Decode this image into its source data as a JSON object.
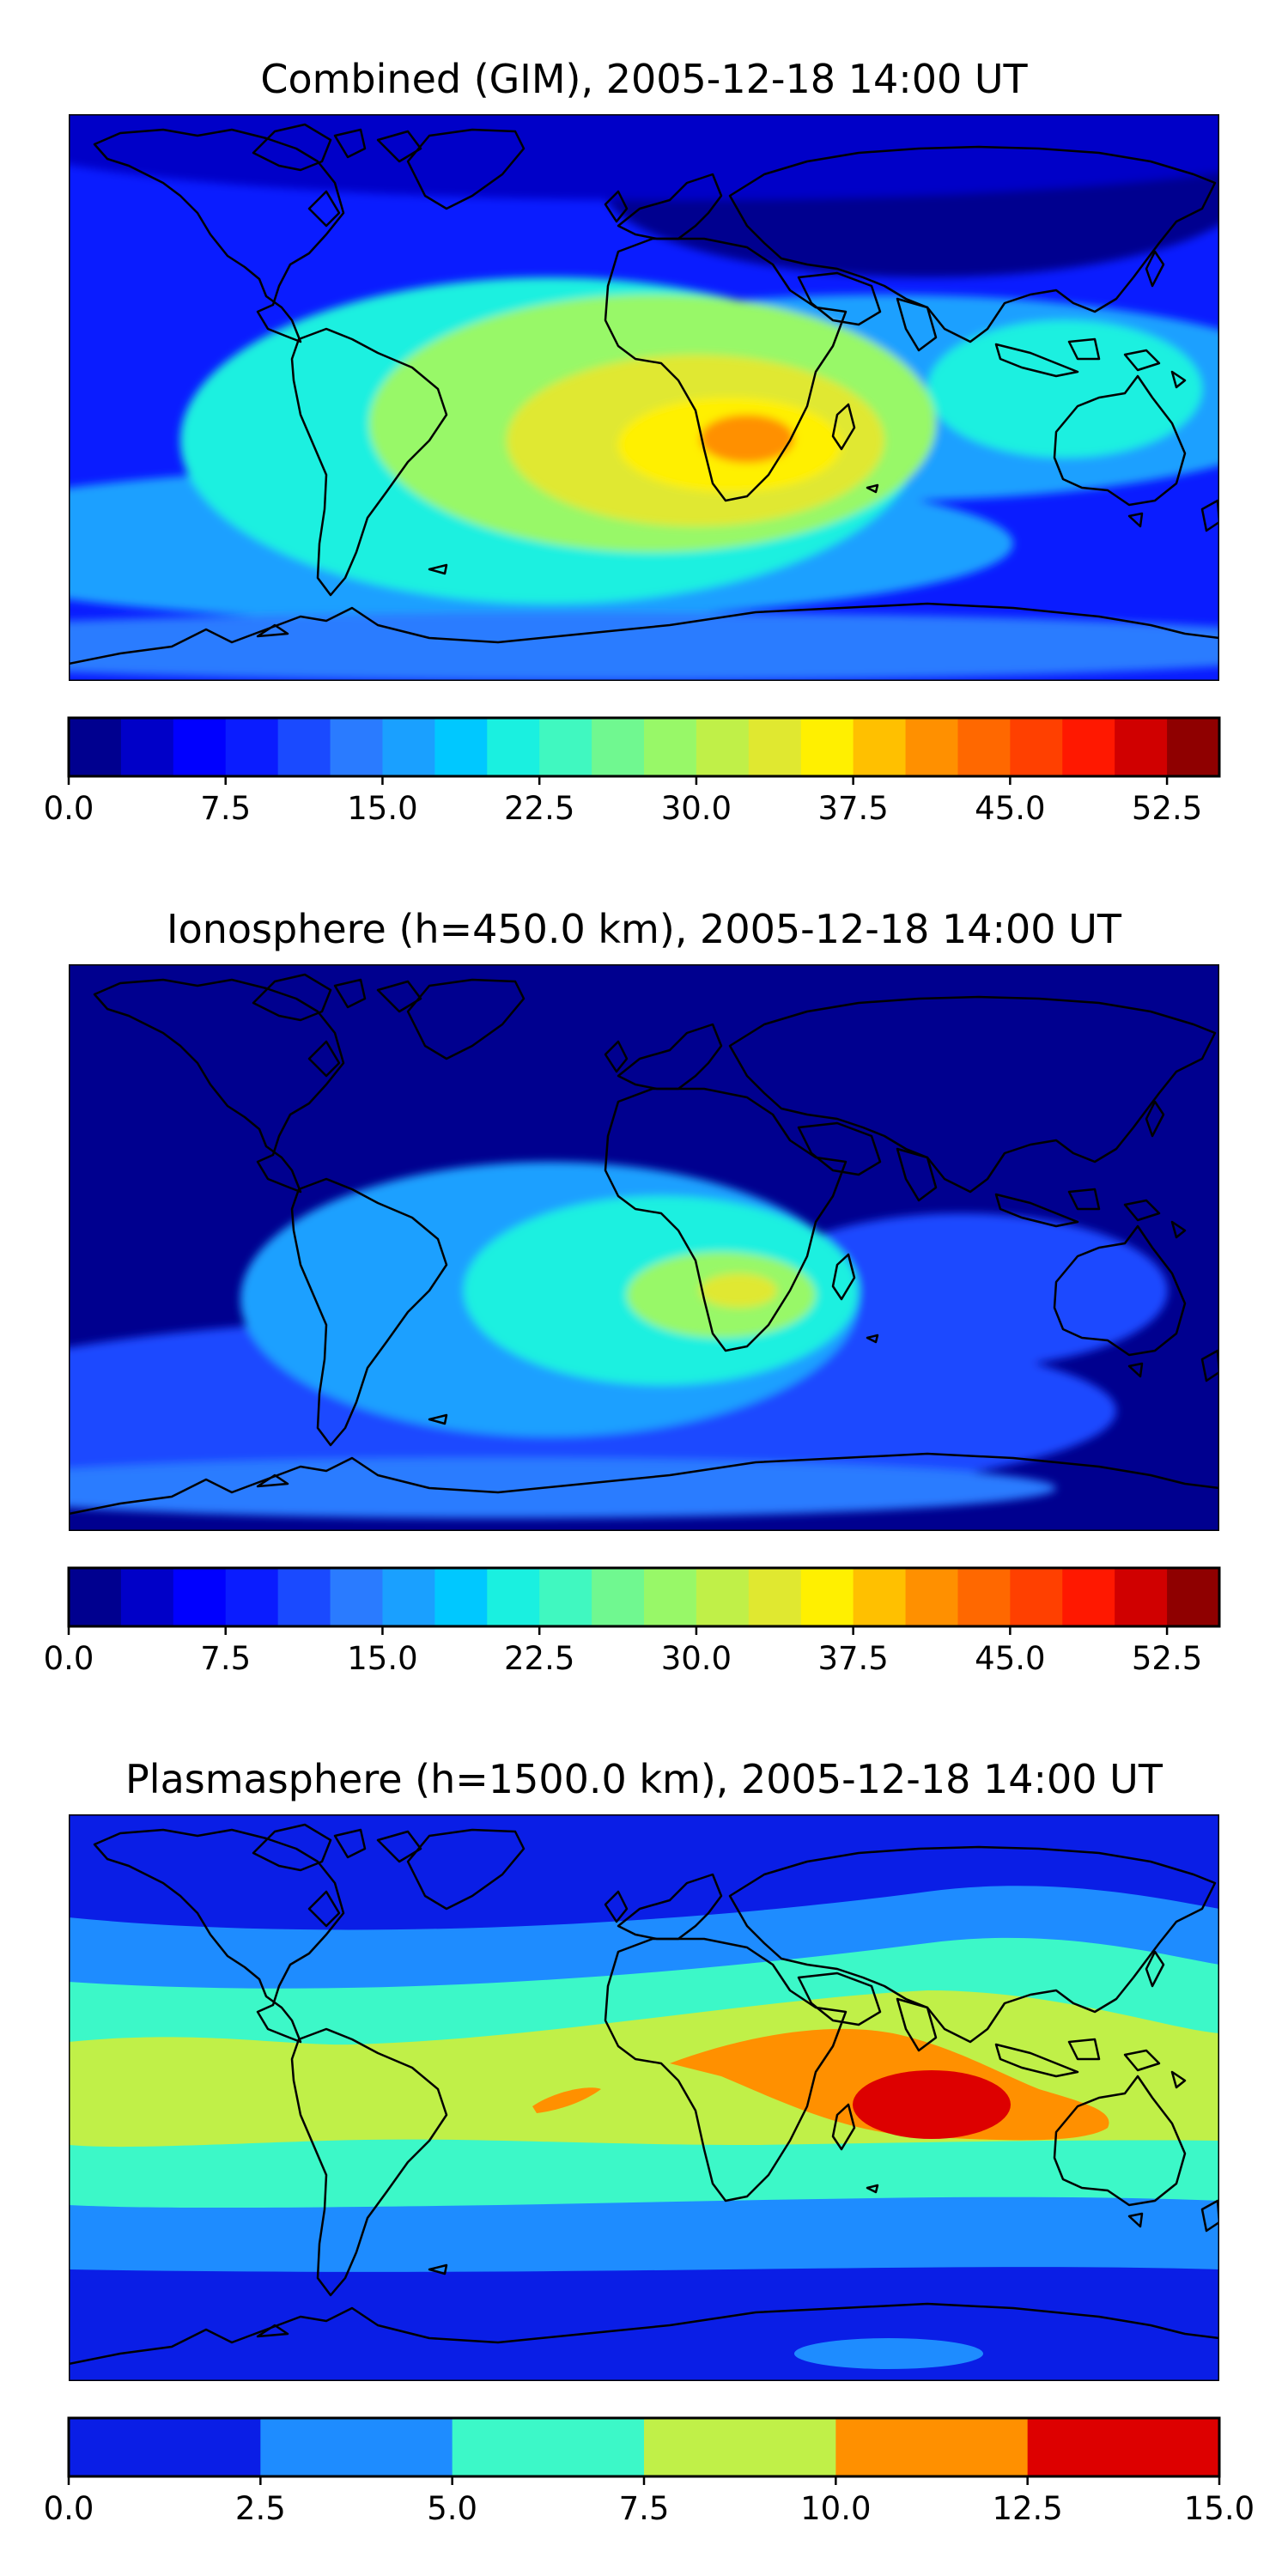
{
  "chart_data": [
    {
      "type": "heatmap",
      "title": "Combined (GIM), 2005-12-18 14:00 UT",
      "projection": "world map, continents outlined",
      "colorbar": {
        "min": 0.0,
        "max": 55.0,
        "step": 2.5,
        "ticks": [
          "0.0",
          "7.5",
          "15.0",
          "22.5",
          "30.0",
          "37.5",
          "45.0",
          "52.5"
        ],
        "colormap": "jet",
        "colors": [
          "#00008f",
          "#0000c8",
          "#0000ff",
          "#0a1cff",
          "#1a4aff",
          "#2a7bff",
          "#1aa0ff",
          "#00c8ff",
          "#1af0e0",
          "#40f8c0",
          "#70f890",
          "#98f868",
          "#c0f048",
          "#e0e830",
          "#fff000",
          "#ffc000",
          "#ff9000",
          "#ff6800",
          "#ff4000",
          "#ff1800",
          "#d00000",
          "#8f0000"
        ]
      },
      "features": [
        {
          "name": "background",
          "value": 7.5
        },
        {
          "name": "north polar region",
          "value": 3.5
        },
        {
          "name": "asia high latitude",
          "value": 1.5
        },
        {
          "name": "antarctic band",
          "value": 12.5
        },
        {
          "name": "south hemisphere mid band",
          "value": 16.0
        },
        {
          "name": "pacific low latitude band",
          "value": 15.0
        },
        {
          "name": "south america-atlantic",
          "value": 20.5
        },
        {
          "name": "central atlantic-africa",
          "value": 27.5
        },
        {
          "name": "south atlantic-africa",
          "value": 33.5
        },
        {
          "name": "africa core",
          "value": 37.0
        },
        {
          "name": "africa peak",
          "value": 41.0
        },
        {
          "name": "maritime continent",
          "value": 20.0
        }
      ]
    },
    {
      "type": "heatmap",
      "title": "Ionosphere  (h=450.0 km), 2005-12-18 14:00 UT",
      "projection": "world map, continents outlined",
      "colorbar": {
        "min": 0.0,
        "max": 55.0,
        "step": 2.5,
        "ticks": [
          "0.0",
          "7.5",
          "15.0",
          "22.5",
          "30.0",
          "37.5",
          "45.0",
          "52.5"
        ],
        "colormap": "jet",
        "colors": [
          "#00008f",
          "#0000c8",
          "#0000ff",
          "#0a1cff",
          "#1a4aff",
          "#2a7bff",
          "#1aa0ff",
          "#00c8ff",
          "#1af0e0",
          "#40f8c0",
          "#70f890",
          "#98f868",
          "#c0f048",
          "#e0e830",
          "#fff000",
          "#ffc000",
          "#ff9000",
          "#ff6800",
          "#ff4000",
          "#ff1800",
          "#d00000",
          "#8f0000"
        ]
      },
      "features": [
        {
          "name": "background",
          "value": 1.5
        },
        {
          "name": "southern band",
          "value": 11.0
        },
        {
          "name": "antarctic band",
          "value": 14.0
        },
        {
          "name": "south america-atlantic",
          "value": 16.0
        },
        {
          "name": "atlantic-africa",
          "value": 22.0
        },
        {
          "name": "africa core",
          "value": 28.0
        },
        {
          "name": "africa peak",
          "value": 32.5
        },
        {
          "name": "indian ocean",
          "value": 10.0
        }
      ]
    },
    {
      "type": "heatmap",
      "title": "Plasmasphere (h=1500.0 km), 2005-12-18 14:00 UT",
      "projection": "world map, continents outlined",
      "colorbar": {
        "min": 0.0,
        "max": 15.0,
        "step": 2.5,
        "ticks": [
          "0.0",
          "2.5",
          "5.0",
          "7.5",
          "10.0",
          "12.5",
          "15.0"
        ],
        "colormap": "jet",
        "colors": [
          "#0a1ee6",
          "#1e8cff",
          "#3cf8c8",
          "#c0f048",
          "#ff9000",
          "#dd0000"
        ]
      },
      "features": [
        {
          "name": "polar regions",
          "value": 1.25
        },
        {
          "name": "mid latitude bands",
          "value": 3.75
        },
        {
          "name": "low latitude bands",
          "value": 6.25
        },
        {
          "name": "equatorial band",
          "value": 8.75
        },
        {
          "name": "indian ocean maximum",
          "value": 11.25
        },
        {
          "name": "indian ocean peak",
          "value": 13.75
        }
      ]
    }
  ]
}
